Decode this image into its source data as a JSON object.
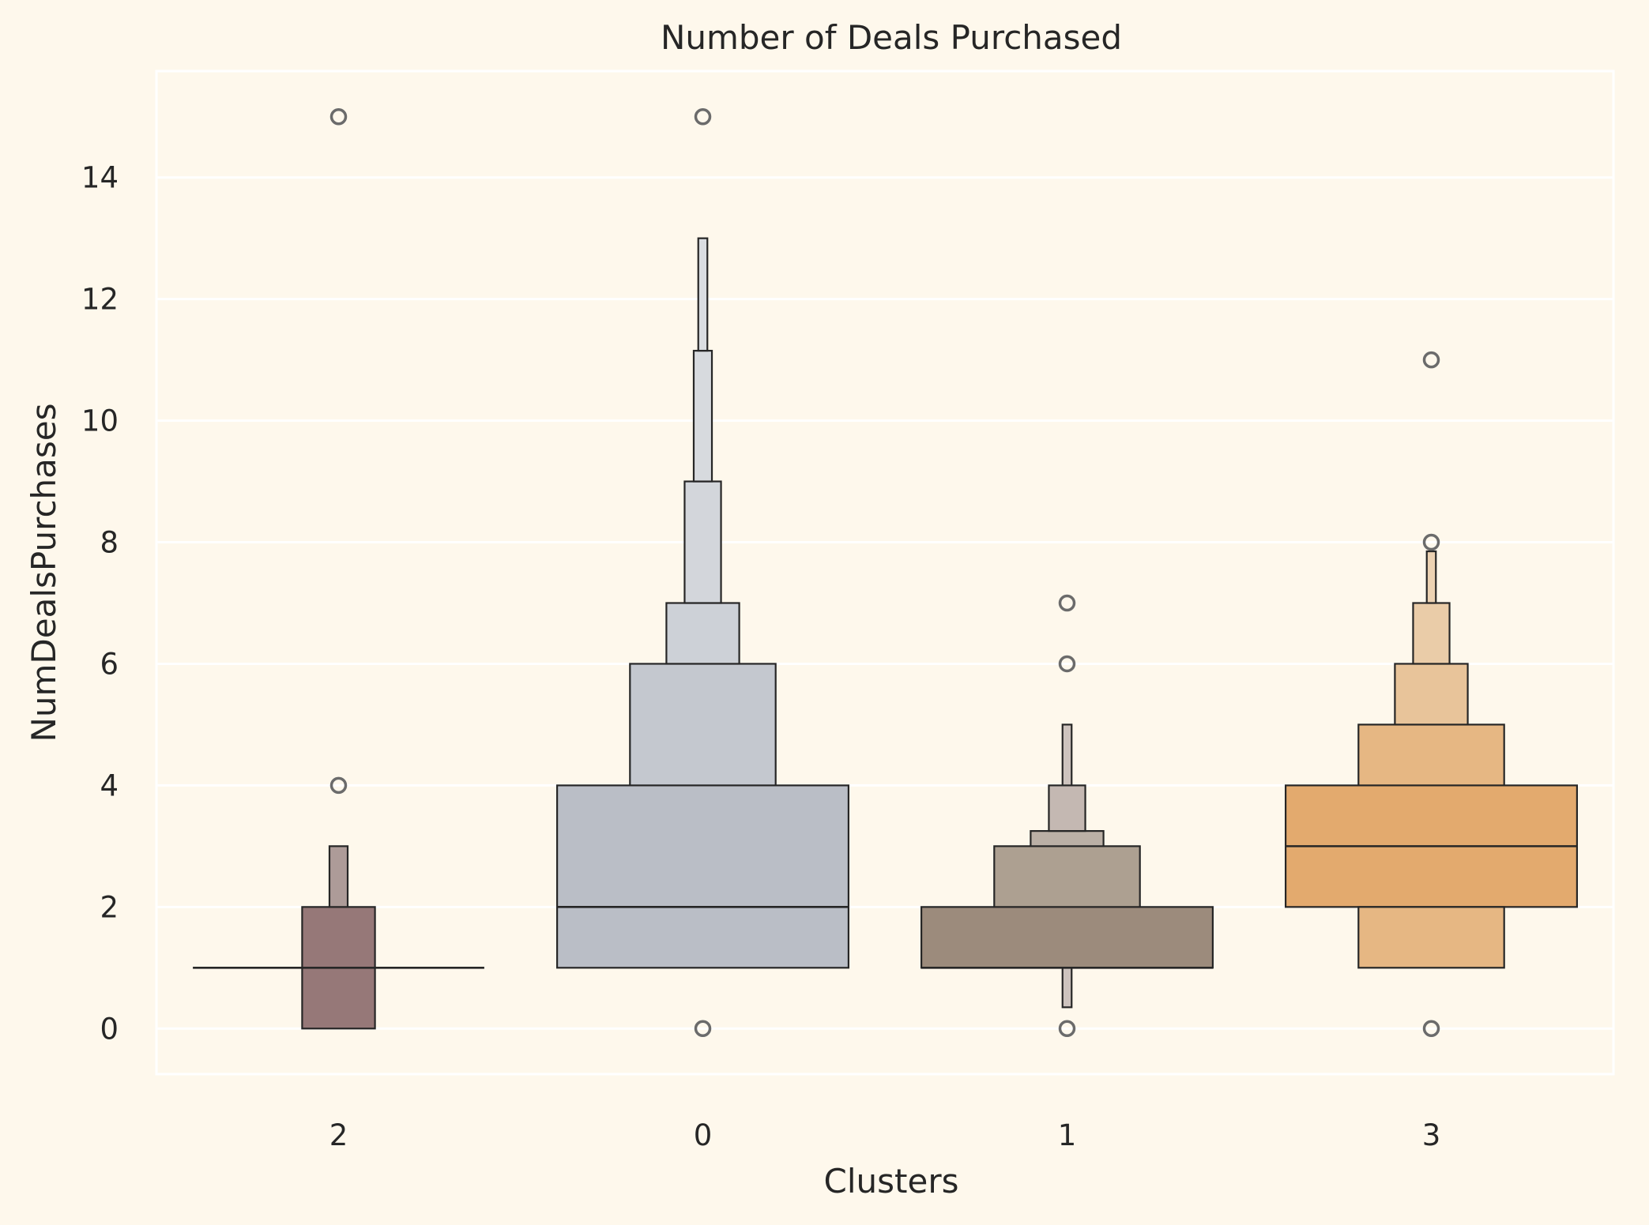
{
  "chart_data": {
    "type": "boxen",
    "title": "Number of Deals Purchased",
    "xlabel": "Clusters",
    "ylabel": "NumDealsPurchases",
    "categories": [
      "2",
      "0",
      "1",
      "3"
    ],
    "ylim": [
      -0.75,
      15.75
    ],
    "yticks": [
      0,
      2,
      4,
      6,
      8,
      10,
      12,
      14
    ],
    "grid": true,
    "background": "#FEF8EC",
    "grid_color": "#FFFFFF",
    "edge_color": "#262626",
    "outlier_color": "#6B6B6B",
    "series": [
      {
        "category": "2",
        "median": 1,
        "levels": [
          {
            "low": 0,
            "high": 2,
            "width": 0.2,
            "color": "#967878"
          },
          {
            "low": 2,
            "high": 3,
            "width": 0.05,
            "color": "#AD9B98"
          }
        ],
        "outliers": [
          4,
          15
        ]
      },
      {
        "category": "0",
        "median": 2,
        "levels": [
          {
            "low": 1,
            "high": 4,
            "width": 0.8,
            "color": "#BABEC6"
          },
          {
            "low": 4,
            "high": 6,
            "width": 0.4,
            "color": "#C4C8CF"
          },
          {
            "low": 6,
            "high": 7,
            "width": 0.2,
            "color": "#CDD1D7"
          },
          {
            "low": 7,
            "high": 9,
            "width": 0.1,
            "color": "#D3D6DB"
          },
          {
            "low": 9,
            "high": 11.15,
            "width": 0.05,
            "color": "#D7DADE"
          },
          {
            "low": 11.15,
            "high": 13,
            "width": 0.025,
            "color": "#DADDE1"
          }
        ],
        "outliers": [
          0,
          15
        ]
      },
      {
        "category": "1",
        "median": 1,
        "levels": [
          {
            "low": 1,
            "high": 2,
            "width": 0.8,
            "color": "#9C8B7C"
          },
          {
            "low": 2,
            "high": 3,
            "width": 0.4,
            "color": "#ADA091"
          },
          {
            "low": 3,
            "high": 3.25,
            "width": 0.2,
            "color": "#BBB0A6"
          },
          {
            "low": 3.25,
            "high": 4,
            "width": 0.1,
            "color": "#C4B8B2"
          },
          {
            "low": 4,
            "high": 5,
            "width": 0.025,
            "color": "#CDC3BE"
          },
          {
            "low": 0.35,
            "high": 1,
            "width": 0.025,
            "color": "#CDC3BE"
          }
        ],
        "outliers": [
          0,
          6,
          7
        ]
      },
      {
        "category": "3",
        "median": 3,
        "levels": [
          {
            "low": 2,
            "high": 4,
            "width": 0.8,
            "color": "#E3AA6E"
          },
          {
            "low": 1,
            "high": 2,
            "width": 0.4,
            "color": "#E6B783"
          },
          {
            "low": 4,
            "high": 5,
            "width": 0.4,
            "color": "#E6B783"
          },
          {
            "low": 5,
            "high": 6,
            "width": 0.2,
            "color": "#E8C49A"
          },
          {
            "low": 6,
            "high": 7,
            "width": 0.1,
            "color": "#EACCA8"
          },
          {
            "low": 7,
            "high": 7.85,
            "width": 0.025,
            "color": "#ECD2B2"
          }
        ],
        "outliers": [
          0,
          8,
          11
        ]
      }
    ]
  }
}
